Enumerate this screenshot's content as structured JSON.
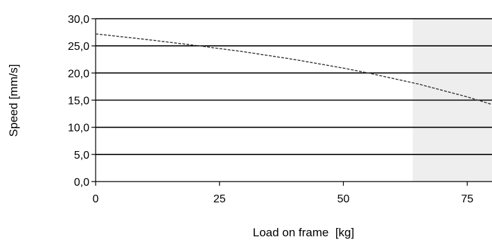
{
  "chart_data": {
    "type": "line",
    "title": "",
    "xlabel": "Load on frame  [kg]",
    "ylabel": "Speed [mm/s]",
    "xlim": [
      0,
      80
    ],
    "ylim": [
      0,
      30
    ],
    "x_ticks": [
      0,
      25,
      50,
      75
    ],
    "x_tick_labels": [
      "0",
      "25",
      "50",
      "75"
    ],
    "y_ticks": [
      0,
      5,
      10,
      15,
      20,
      25,
      30
    ],
    "y_tick_labels": [
      "0,0",
      "5,0",
      "10,0",
      "15,0",
      "20,0",
      "25,0",
      "30,0"
    ],
    "grid": "horizontal",
    "shaded_region": {
      "x_start": 64,
      "x_end": 80,
      "color": "#eeeeee"
    },
    "series": [
      {
        "line_style": "dashed",
        "color": "#333333",
        "x": [
          0,
          10,
          20,
          30,
          40,
          50,
          55,
          60,
          65,
          70,
          75,
          80
        ],
        "y": [
          27.2,
          26.2,
          25.1,
          23.9,
          22.5,
          20.9,
          20.0,
          19.0,
          18.0,
          16.8,
          15.6,
          14.2
        ]
      }
    ]
  }
}
